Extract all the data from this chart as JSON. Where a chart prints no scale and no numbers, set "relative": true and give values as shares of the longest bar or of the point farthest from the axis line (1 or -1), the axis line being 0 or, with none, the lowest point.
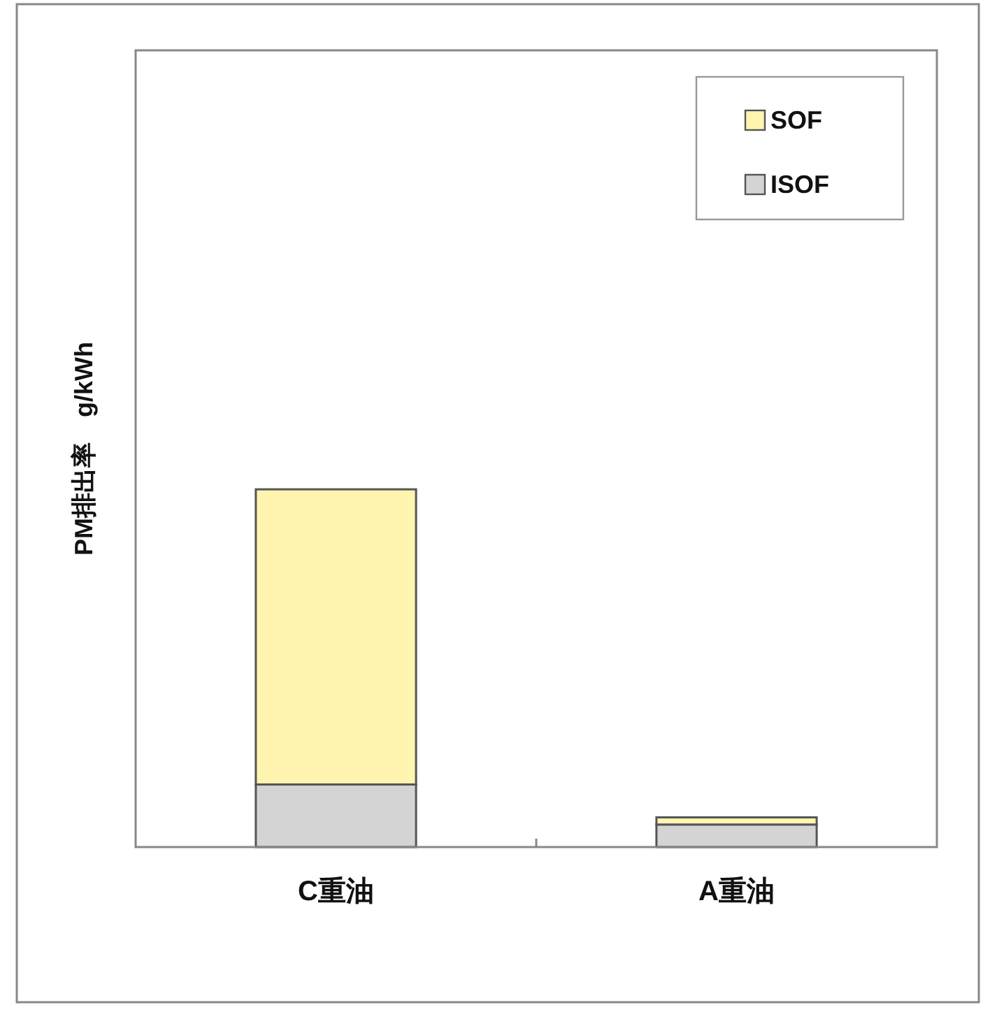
{
  "chart_data": {
    "type": "bar",
    "stacked": true,
    "relative": true,
    "ylabel": "PM排出率　g/kWh",
    "categories": [
      "C重油",
      "A重油"
    ],
    "series": [
      {
        "name": "ISOF",
        "color": "#d4d4d4",
        "values": [
          0.175,
          0.063
        ]
      },
      {
        "name": "SOF",
        "color": "#fff5b0",
        "values": [
          0.825,
          0.02
        ]
      }
    ],
    "legend": "top right",
    "grid": false
  }
}
